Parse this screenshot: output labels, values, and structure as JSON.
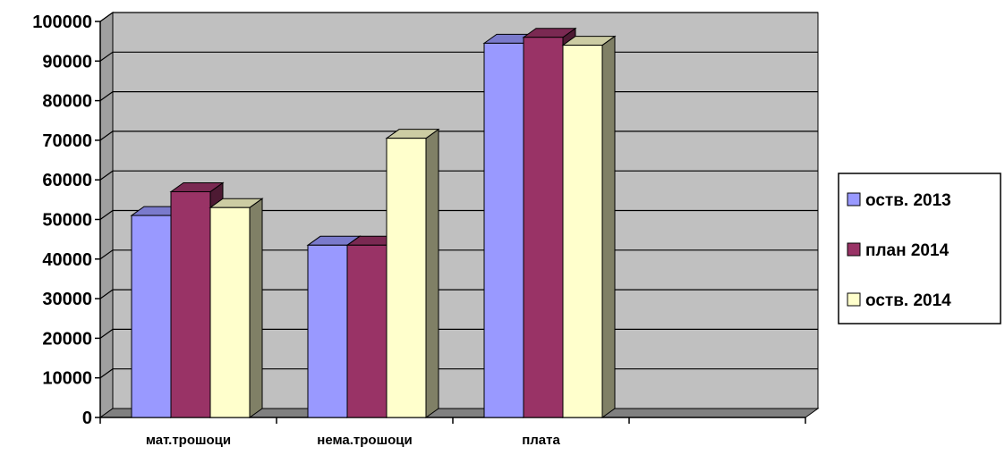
{
  "chart_data": {
    "type": "bar",
    "title": "",
    "xlabel": "",
    "ylabel": "",
    "categories": [
      "мат.трошоци",
      "нема.трошоци",
      "плата",
      ""
    ],
    "series": [
      {
        "name": "оств. 2013",
        "color": "#9999FF",
        "values": [
          51000,
          43500,
          94500,
          null
        ]
      },
      {
        "name": "план 2014",
        "color": "#993366",
        "values": [
          57000,
          43500,
          96000,
          null
        ]
      },
      {
        "name": "оств. 2014",
        "color": "#FFFFCC",
        "values": [
          53000,
          70500,
          94000,
          null
        ]
      }
    ],
    "ylim": [
      0,
      100000
    ],
    "yticks": [
      0,
      10000,
      20000,
      30000,
      40000,
      50000,
      60000,
      70000,
      80000,
      90000,
      100000
    ],
    "grid": true,
    "legend_position": "right",
    "style": "3d-clustered-column",
    "wall_color": "#C0C0C0",
    "floor_color": "#808080"
  }
}
